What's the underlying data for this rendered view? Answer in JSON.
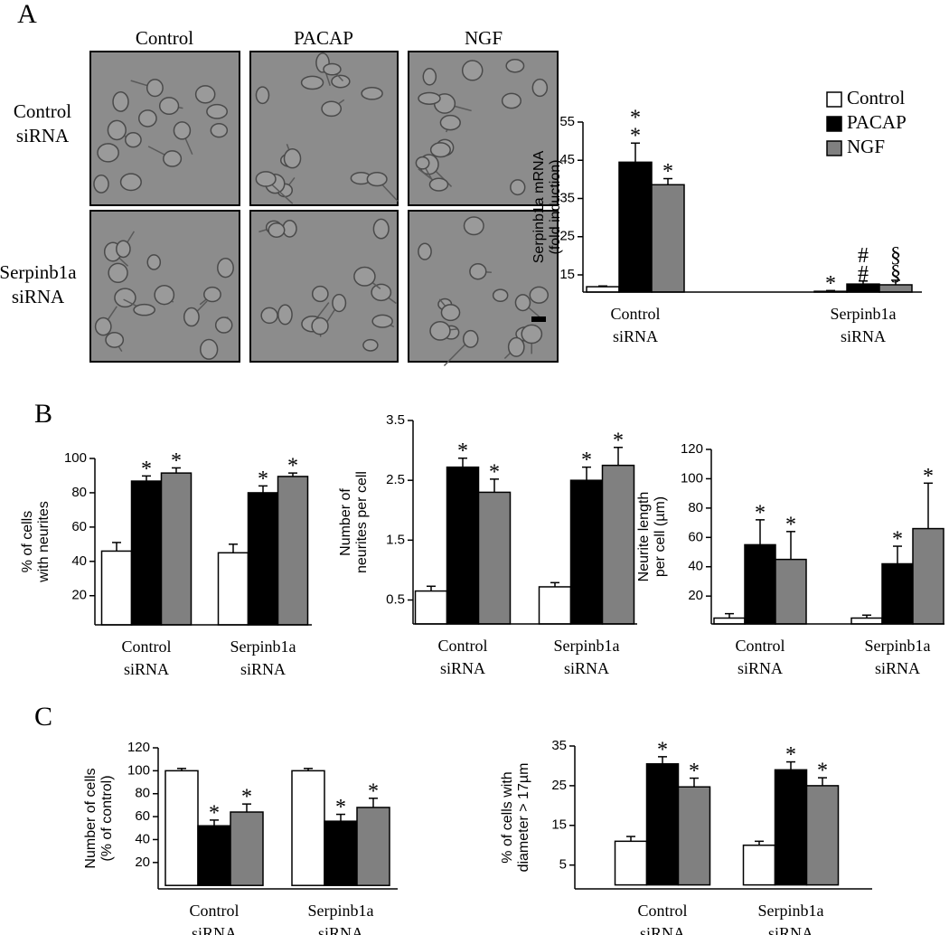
{
  "panel_labels": [
    "A",
    "B",
    "C"
  ],
  "micrographs": {
    "columns": [
      "Control",
      "PACAP",
      "NGF"
    ],
    "rows": [
      [
        "Control",
        "siRNA"
      ],
      [
        "Serpinb1a",
        "siRNA"
      ]
    ]
  },
  "chart_data": [
    {
      "type": "bar",
      "y_label": [
        "Serpinb1a mRNA",
        "(fold induction)"
      ],
      "categories": [
        [
          "Control",
          "siRNA"
        ],
        [
          "Serpinb1a",
          "siRNA"
        ]
      ],
      "series": [
        {
          "name": "Control",
          "color": "#ffffff",
          "values": [
            11.9,
            10.7
          ],
          "errors": [
            0.2,
            0.2
          ],
          "annotations": [
            null,
            [
              "*"
            ]
          ]
        },
        {
          "name": "PACAP",
          "color": "#000000",
          "values": [
            44.5,
            12.6
          ],
          "errors": [
            5,
            0.8
          ],
          "annotations": [
            [
              "*",
              "*"
            ],
            [
              "#",
              "#"
            ]
          ]
        },
        {
          "name": "NGF",
          "color": "#808080",
          "values": [
            38.6,
            12.4
          ],
          "errors": [
            1.6,
            1.2
          ],
          "annotations": [
            [
              "*"
            ],
            [
              "§",
              "§"
            ]
          ]
        }
      ],
      "ylim": [
        10.5,
        55
      ],
      "yticks": [
        15,
        25,
        35,
        45,
        55
      ],
      "legend": "top-right"
    },
    {
      "type": "bar",
      "y_label": [
        "% of cells",
        "with neurites"
      ],
      "categories": [
        [
          "Control",
          "siRNA"
        ],
        [
          "Serpinb1a",
          "siRNA"
        ]
      ],
      "series": [
        {
          "color": "#ffffff",
          "values": [
            46,
            45
          ],
          "errors": [
            5,
            5
          ],
          "annotations": [
            null,
            null
          ]
        },
        {
          "color": "#000000",
          "values": [
            86.8,
            80
          ],
          "errors": [
            3,
            4
          ],
          "annotations": [
            [
              "*"
            ],
            [
              "*"
            ]
          ]
        },
        {
          "color": "#808080",
          "values": [
            91.5,
            89.5
          ],
          "errors": [
            3,
            2
          ],
          "annotations": [
            [
              "*"
            ],
            [
              "*"
            ]
          ]
        }
      ],
      "ylim": [
        3,
        100
      ],
      "yticks": [
        20,
        40,
        60,
        80,
        100
      ]
    },
    {
      "type": "bar",
      "y_label": [
        "Number of",
        "neurites per cell"
      ],
      "categories": [
        [
          "Control",
          "siRNA"
        ],
        [
          "Serpinb1a",
          "siRNA"
        ]
      ],
      "series": [
        {
          "color": "#ffffff",
          "values": [
            0.65,
            0.72
          ],
          "errors": [
            0.08,
            0.07
          ],
          "annotations": [
            null,
            null
          ]
        },
        {
          "color": "#000000",
          "values": [
            2.72,
            2.5
          ],
          "errors": [
            0.15,
            0.22
          ],
          "annotations": [
            [
              "*"
            ],
            [
              "*"
            ]
          ]
        },
        {
          "color": "#808080",
          "values": [
            2.3,
            2.75
          ],
          "errors": [
            0.22,
            0.3
          ],
          "annotations": [
            [
              "*"
            ],
            [
              "*"
            ]
          ]
        }
      ],
      "ylim": [
        0.1,
        3.5
      ],
      "yticks": [
        0.5,
        1.5,
        2.5,
        3.5
      ]
    },
    {
      "type": "bar",
      "y_label": [
        "Neurite length",
        "per cell (µm)"
      ],
      "categories": [
        [
          "Control",
          "siRNA"
        ],
        [
          "Serpinb1a",
          "siRNA"
        ]
      ],
      "series": [
        {
          "color": "#ffffff",
          "values": [
            5,
            5
          ],
          "errors": [
            3,
            2
          ],
          "annotations": [
            null,
            null
          ]
        },
        {
          "color": "#000000",
          "values": [
            55,
            42
          ],
          "errors": [
            17,
            12
          ],
          "annotations": [
            [
              "*"
            ],
            [
              "*"
            ]
          ]
        },
        {
          "color": "#808080",
          "values": [
            45,
            66
          ],
          "errors": [
            19,
            31
          ],
          "annotations": [
            [
              "*"
            ],
            [
              "*"
            ]
          ]
        }
      ],
      "ylim": [
        1,
        120
      ],
      "yticks": [
        20,
        40,
        60,
        80,
        100,
        120
      ]
    },
    {
      "type": "bar",
      "y_label": [
        "Number of cells",
        "(% of control)"
      ],
      "categories": [
        [
          "Control",
          "siRNA"
        ],
        [
          "Serpinb1a",
          "siRNA"
        ]
      ],
      "series": [
        {
          "color": "#ffffff",
          "values": [
            100,
            100
          ],
          "errors": [
            2,
            2
          ],
          "annotations": [
            null,
            null
          ]
        },
        {
          "color": "#000000",
          "values": [
            52,
            56
          ],
          "errors": [
            5,
            6
          ],
          "annotations": [
            [
              "*"
            ],
            [
              "*"
            ]
          ]
        },
        {
          "color": "#808080",
          "values": [
            64,
            68
          ],
          "errors": [
            7,
            8
          ],
          "annotations": [
            [
              "*"
            ],
            [
              "*"
            ]
          ]
        }
      ],
      "ylim": [
        -3,
        120
      ],
      "yticks": [
        20,
        40,
        60,
        80,
        100,
        120
      ]
    },
    {
      "type": "bar",
      "y_label": [
        "% of cells with",
        "diameter > 17µm"
      ],
      "categories": [
        [
          "Control",
          "siRNA"
        ],
        [
          "Serpinb1a",
          "siRNA"
        ]
      ],
      "series": [
        {
          "color": "#ffffff",
          "values": [
            11,
            10
          ],
          "errors": [
            1.2,
            1
          ],
          "annotations": [
            null,
            null
          ]
        },
        {
          "color": "#000000",
          "values": [
            30.5,
            29
          ],
          "errors": [
            1.8,
            2
          ],
          "annotations": [
            [
              "*"
            ],
            [
              "*"
            ]
          ]
        },
        {
          "color": "#808080",
          "values": [
            24.7,
            25
          ],
          "errors": [
            2.2,
            2
          ],
          "annotations": [
            [
              "*"
            ],
            [
              "*"
            ]
          ]
        }
      ],
      "ylim": [
        -1,
        35
      ],
      "yticks": [
        5,
        15,
        25,
        35
      ]
    }
  ]
}
